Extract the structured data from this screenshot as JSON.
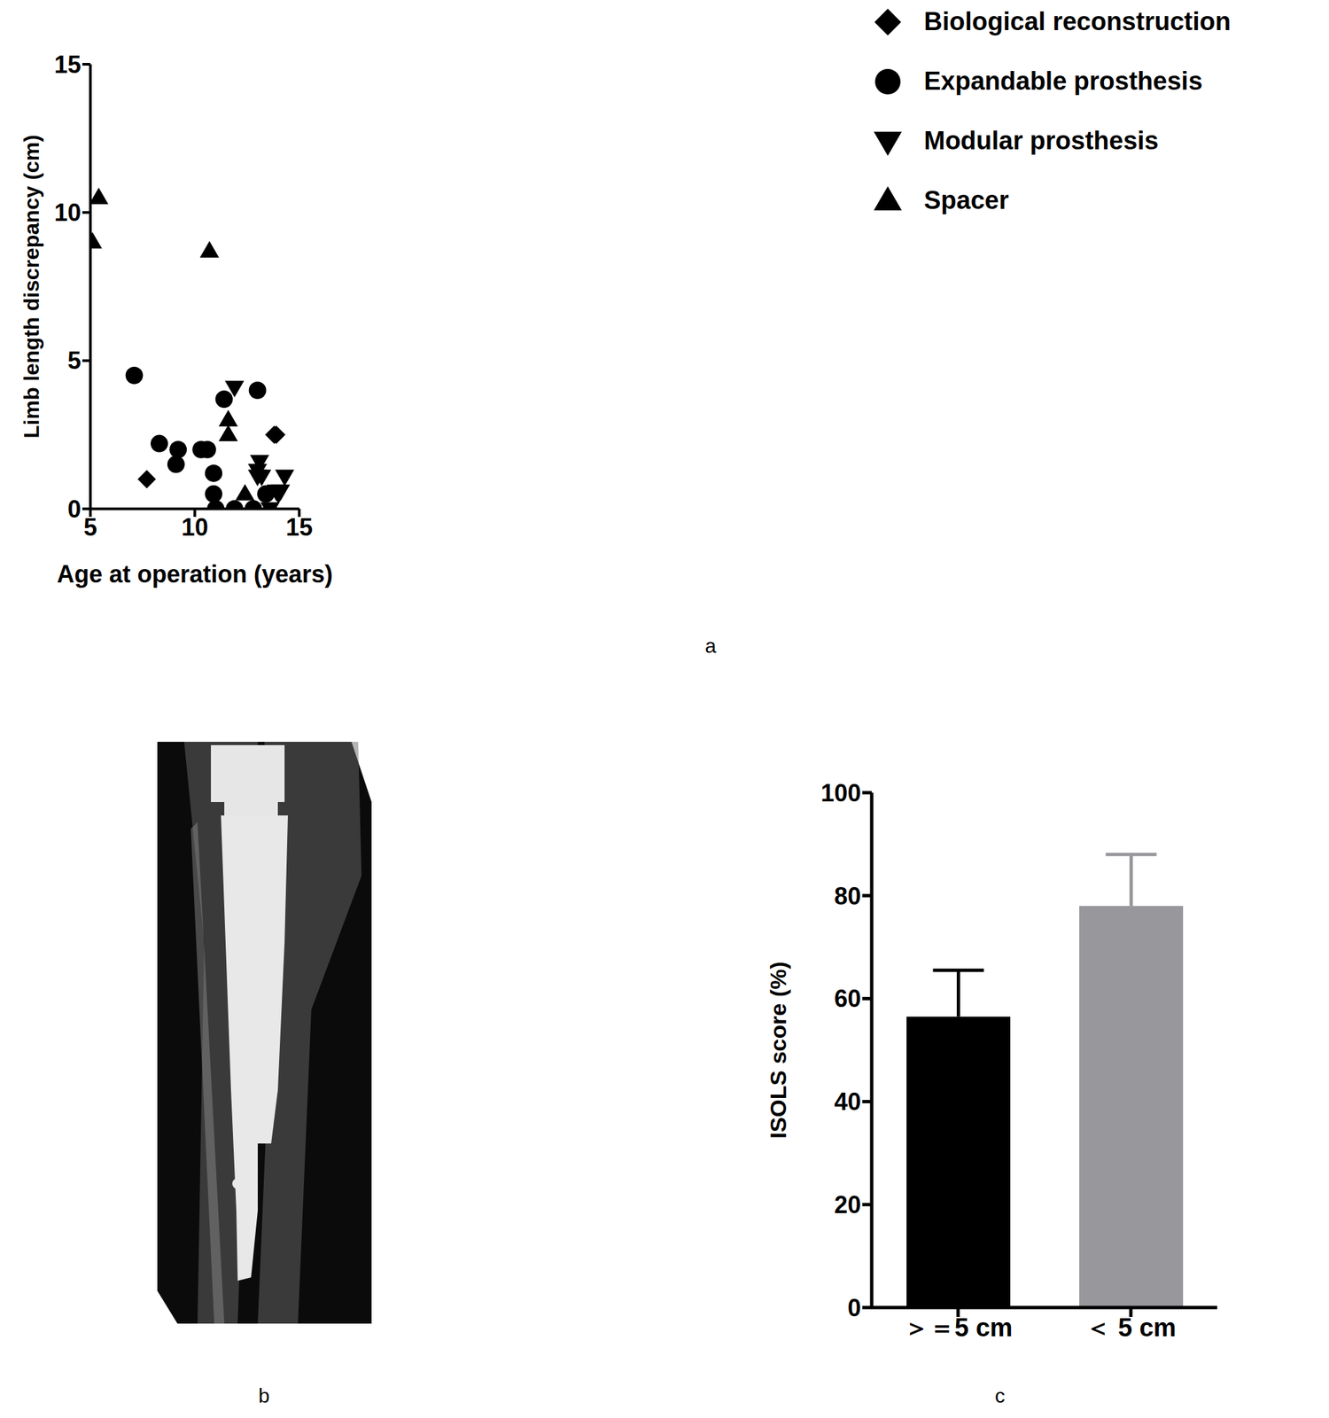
{
  "panel_labels": [
    "a",
    "b",
    "c"
  ],
  "chart_data": [
    {
      "type": "scatter",
      "x_label": "Age at operation (years)",
      "y_label": "Limb length discrepancy (cm)",
      "xlim": [
        5,
        15
      ],
      "ylim": [
        0,
        15
      ],
      "xticks": [
        5,
        10,
        15
      ],
      "yticks": [
        0,
        5,
        10,
        15
      ],
      "grid": false,
      "legend": "upper right",
      "series": [
        {
          "name": "Expandable prosthesis",
          "color": "#000000",
          "marker": "circle",
          "x": [
            7.1,
            8.3,
            9.1,
            9.2,
            10.3,
            10.6,
            10.9,
            10.9,
            11.0,
            11.4,
            11.9,
            12.8,
            13.0,
            13.4
          ],
          "values": [
            4.5,
            2.2,
            1.5,
            2.0,
            2.0,
            2.0,
            1.2,
            0.5,
            0,
            3.7,
            0,
            0,
            4.0,
            0.5
          ]
        },
        {
          "name": "Spacer",
          "color": "#000000",
          "marker": "triangle",
          "x": [
            5.1,
            5.4,
            10.7,
            11.6,
            11.6,
            12.4
          ],
          "values": [
            9.0,
            10.5,
            8.7,
            3.0,
            2.5,
            0.5
          ]
        },
        {
          "name": "Modular prosthesis",
          "color": "#000000",
          "marker": "triangle-down",
          "x": [
            11.9,
            13.0,
            13.1,
            13.2,
            13.0,
            13.6,
            13.9,
            14.1,
            14.3,
            14.0
          ],
          "values": [
            4.1,
            1.3,
            1.6,
            1.1,
            1.1,
            0,
            0.6,
            0.6,
            1.1,
            0.5
          ]
        },
        {
          "name": "Biological reconstruction",
          "color": "#000000",
          "marker": "diamond",
          "x": [
            7.7,
            13.8,
            13.9
          ],
          "values": [
            1.0,
            2.5,
            2.5
          ]
        }
      ]
    },
    {
      "type": "bar",
      "categories": [
        "＞＝5 cm",
        "＜ 5 cm"
      ],
      "values": [
        56.5,
        78
      ],
      "errors": [
        9,
        10
      ],
      "colors": [
        "#000000",
        "#97979c"
      ],
      "y_label": "ISOLS score (%)",
      "ylim": [
        0,
        100
      ],
      "yticks": [
        0,
        20,
        40,
        60,
        80,
        100
      ],
      "grid": false
    }
  ]
}
